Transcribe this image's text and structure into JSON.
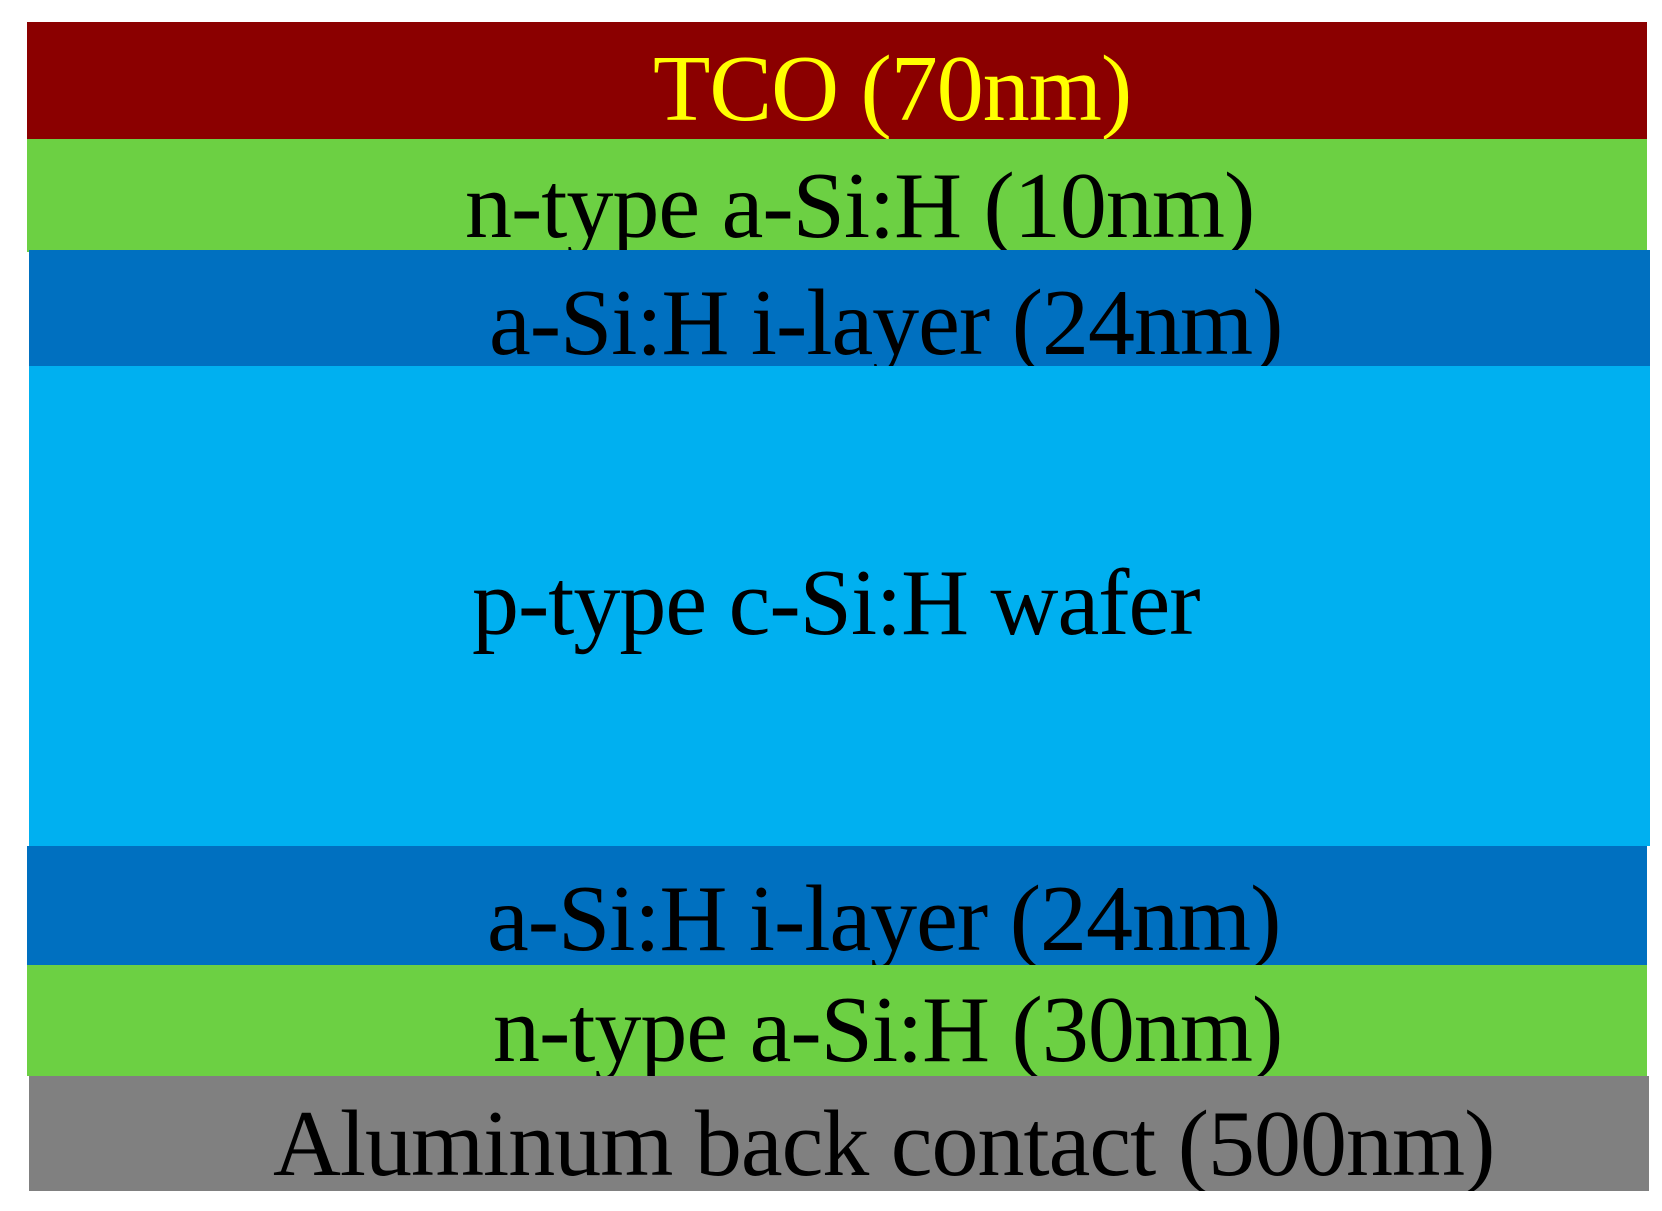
{
  "layers": [
    {
      "id": "tco",
      "label": "TCO (70nm)",
      "fill": "#8b0000",
      "text_color": "#ffff00"
    },
    {
      "id": "n-top",
      "label": "n-type a-Si:H (10nm)",
      "fill": "#6cd043",
      "text_color": "#000000"
    },
    {
      "id": "i-top",
      "label": "a-Si:H i-layer (24nm)",
      "fill": "#0070c0",
      "text_color": "#000000"
    },
    {
      "id": "wafer",
      "label": "p-type c-Si:H wafer",
      "fill": "#00b0f0",
      "text_color": "#000000"
    },
    {
      "id": "i-bottom",
      "label": "a-Si:H i-layer (24nm)",
      "fill": "#0070c0",
      "text_color": "#000000"
    },
    {
      "id": "n-bottom",
      "label": "n-type a-Si:H (30nm)",
      "fill": "#6cd043",
      "text_color": "#000000"
    },
    {
      "id": "al",
      "label": "Aluminum back contact (500nm)",
      "fill": "#808080",
      "text_color": "#000000"
    }
  ]
}
